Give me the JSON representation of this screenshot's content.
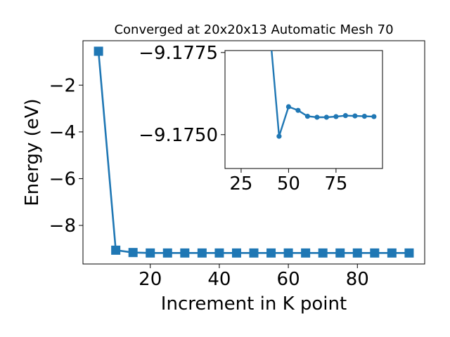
{
  "chart_data": [
    {
      "type": "line",
      "title": "Converged at 20x20x13 Automatic Mesh 70",
      "xlabel": "Increment in K point",
      "ylabel": "Energy (eV)",
      "xlim": [
        0.5,
        99.5
      ],
      "ylim": [
        -9.65,
        -0.1
      ],
      "x_ticks": [
        20,
        40,
        60,
        80
      ],
      "x_tick_labels": [
        "20",
        "40",
        "60",
        "80"
      ],
      "y_ticks": [
        -8,
        -6,
        -4,
        -2
      ],
      "y_tick_labels": [
        "−8",
        "−6",
        "−4",
        "−2"
      ],
      "grid": false,
      "color": "#1f77b4",
      "marker": "square",
      "series": [
        {
          "x": [
            5,
            10,
            15,
            20,
            25,
            30,
            35,
            40,
            45,
            50,
            55,
            60,
            65,
            70,
            75,
            80,
            85,
            90,
            95
          ],
          "y": [
            -0.55,
            -9.06,
            -9.16,
            -9.18,
            -9.18,
            -9.18,
            -9.18,
            -9.18,
            -9.18,
            -9.18,
            -9.18,
            -9.18,
            -9.18,
            -9.18,
            -9.18,
            -9.18,
            -9.18,
            -9.18,
            -9.18
          ]
        }
      ]
    },
    {
      "type": "line",
      "role": "inset",
      "title": "",
      "xlabel": "",
      "ylabel": "",
      "xlim": [
        16.5,
        99.5
      ],
      "ylim": [
        -9.17397,
        -9.17756
      ],
      "x_ticks": [
        25,
        50,
        75
      ],
      "x_tick_labels": [
        "25",
        "50",
        "75"
      ],
      "y_ticks": [
        -9.1775,
        -9.175
      ],
      "y_tick_labels": [
        "−9.1775",
        "−9.1750"
      ],
      "grid": false,
      "color": "#1f77b4",
      "marker": "circle",
      "series": [
        {
          "x": [
            40,
            45,
            50,
            55,
            60,
            65,
            70,
            75,
            80,
            85,
            90,
            95
          ],
          "y": [
            -9.17826,
            -9.17495,
            -9.17585,
            -9.17574,
            -9.17556,
            -9.17553,
            -9.17553,
            -9.17555,
            -9.17558,
            -9.17557,
            -9.17556,
            -9.17555
          ]
        }
      ]
    }
  ]
}
